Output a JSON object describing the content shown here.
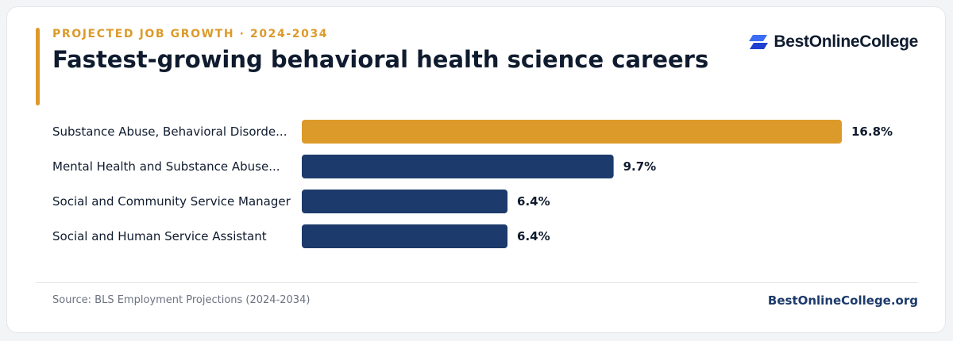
{
  "header": {
    "eyebrow": "PROJECTED JOB GROWTH · 2024-2034",
    "title": "Fastest-growing behavioral health science careers",
    "brand_name": "BestOnlineCollege",
    "brand_logo_icon": "brand-logo-icon"
  },
  "colors": {
    "accent": "#dc9a2a",
    "bar_primary": "#1c3a6b",
    "bar_highlight": "#dc9a2a",
    "text_dark": "#0f1b2e"
  },
  "chart_data": {
    "type": "bar",
    "orientation": "horizontal",
    "categories": [
      "Substance Abuse, Behavioral Disorde...",
      "Mental Health and Substance Abuse...",
      "Social and Community Service Manager",
      "Social and Human Service Assistant"
    ],
    "values": [
      16.8,
      9.7,
      6.4,
      6.4
    ],
    "value_labels": [
      "16.8%",
      "9.7%",
      "6.4%",
      "6.4%"
    ],
    "highlight_index": 0,
    "unit": "%",
    "xlim": [
      0,
      16.8
    ],
    "grid": false
  },
  "footer": {
    "source": "Source: BLS Employment Projections (2024-2034)",
    "site": "BestOnlineCollege.org"
  }
}
